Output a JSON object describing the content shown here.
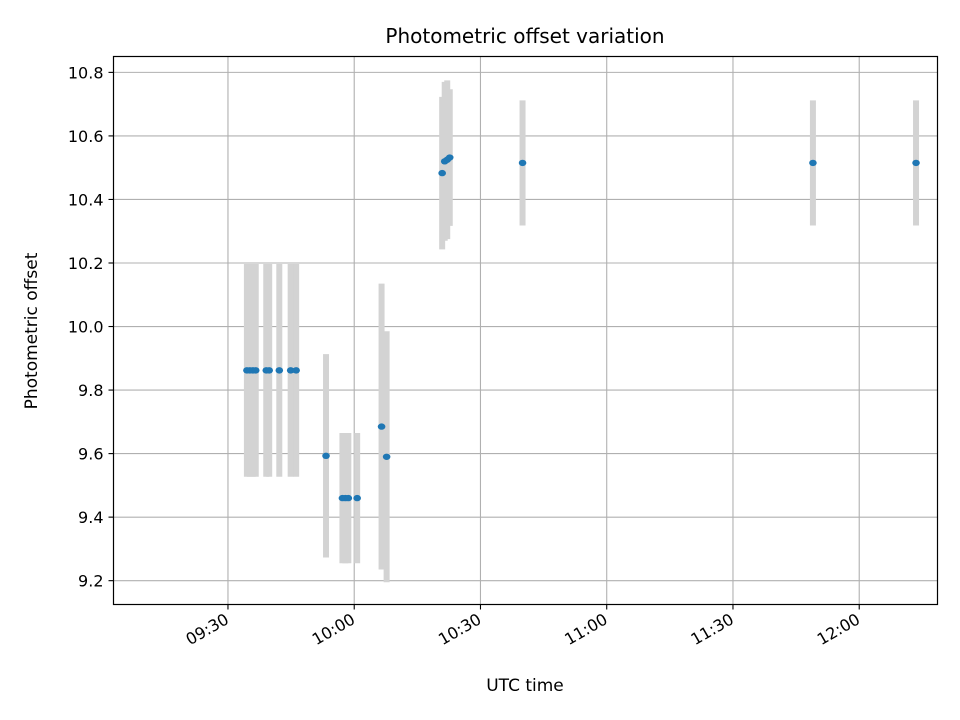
{
  "chart_data": {
    "type": "scatter",
    "title": "Photometric offset variation",
    "xlabel": "UTC time",
    "ylabel": "Photometric offset",
    "grid": true,
    "xlim_minutes": [
      542.8,
      738.6
    ],
    "ylim": [
      9.125,
      10.85
    ],
    "x_ticks": [
      {
        "label": "09:30",
        "minutes": 570
      },
      {
        "label": "10:00",
        "minutes": 600
      },
      {
        "label": "10:30",
        "minutes": 630
      },
      {
        "label": "11:00",
        "minutes": 660
      },
      {
        "label": "11:30",
        "minutes": 690
      },
      {
        "label": "12:00",
        "minutes": 720
      }
    ],
    "y_ticks": [
      {
        "label": "9.2",
        "value": 9.2
      },
      {
        "label": "9.4",
        "value": 9.4
      },
      {
        "label": "9.6",
        "value": 9.6
      },
      {
        "label": "9.8",
        "value": 9.8
      },
      {
        "label": "10.0",
        "value": 10.0
      },
      {
        "label": "10.2",
        "value": 10.2
      },
      {
        "label": "10.4",
        "value": 10.4
      },
      {
        "label": "10.6",
        "value": 10.6
      },
      {
        "label": "10.8",
        "value": 10.8
      }
    ],
    "point_color": "#1f77b4",
    "errorbar_color": "#d3d3d3",
    "points": [
      {
        "t": 574.5,
        "y": 9.862,
        "err": 0.335
      },
      {
        "t": 575.2,
        "y": 9.862,
        "err": 0.335
      },
      {
        "t": 575.9,
        "y": 9.862,
        "err": 0.335
      },
      {
        "t": 576.6,
        "y": 9.862,
        "err": 0.335
      },
      {
        "t": 579.1,
        "y": 9.862,
        "err": 0.335
      },
      {
        "t": 579.8,
        "y": 9.862,
        "err": 0.335
      },
      {
        "t": 582.2,
        "y": 9.862,
        "err": 0.335
      },
      {
        "t": 584.9,
        "y": 9.862,
        "err": 0.335
      },
      {
        "t": 586.2,
        "y": 9.862,
        "err": 0.335
      },
      {
        "t": 593.3,
        "y": 9.593,
        "err": 0.32
      },
      {
        "t": 597.2,
        "y": 9.46,
        "err": 0.205
      },
      {
        "t": 597.9,
        "y": 9.46,
        "err": 0.205
      },
      {
        "t": 598.6,
        "y": 9.46,
        "err": 0.205
      },
      {
        "t": 600.7,
        "y": 9.46,
        "err": 0.205
      },
      {
        "t": 606.5,
        "y": 9.685,
        "err": 0.45
      },
      {
        "t": 607.7,
        "y": 9.59,
        "err": 0.395
      },
      {
        "t": 620.9,
        "y": 10.483,
        "err": 0.24
      },
      {
        "t": 621.5,
        "y": 10.52,
        "err": 0.25
      },
      {
        "t": 622.1,
        "y": 10.525,
        "err": 0.25
      },
      {
        "t": 622.7,
        "y": 10.532,
        "err": 0.215
      },
      {
        "t": 640.0,
        "y": 10.515,
        "err": 0.197
      },
      {
        "t": 709.0,
        "y": 10.515,
        "err": 0.197
      },
      {
        "t": 733.5,
        "y": 10.515,
        "err": 0.197
      }
    ]
  }
}
